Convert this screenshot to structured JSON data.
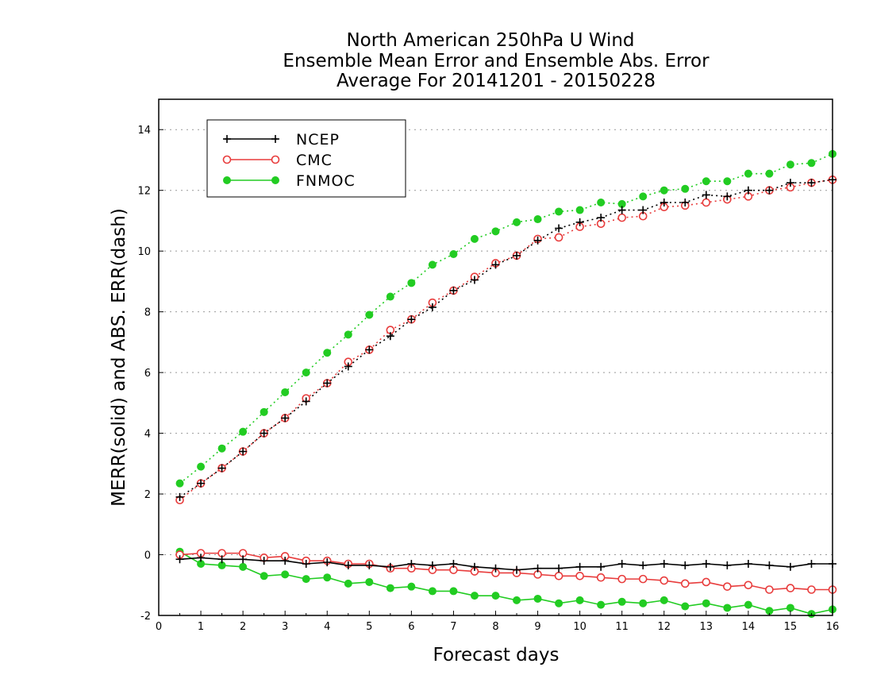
{
  "chart_data": {
    "type": "line",
    "title_lines": [
      "North American 250hPa U Wind",
      "Ensemble Mean Error and Ensemble Abs. Error",
      "Average For 20141201 - 20150228"
    ],
    "xlabel": "Forecast days",
    "ylabel": "MERR(solid) and ABS. ERR(dash)",
    "xlim": [
      0,
      16
    ],
    "ylim": [
      -2,
      15
    ],
    "x_ticks": [
      "0",
      "1",
      "2",
      "3",
      "4",
      "5",
      "6",
      "7",
      "8",
      "9",
      "10",
      "11",
      "12",
      "13",
      "14",
      "15",
      "16"
    ],
    "y_ticks": [
      "-2",
      "0",
      "2",
      "4",
      "6",
      "8",
      "10",
      "12",
      "14"
    ],
    "grid": "horizontal dotted",
    "legend_position": "top-left",
    "x": [
      0.5,
      1,
      1.5,
      2,
      2.5,
      3,
      3.5,
      4,
      4.5,
      5,
      5.5,
      6,
      6.5,
      7,
      7.5,
      8,
      8.5,
      9,
      9.5,
      10,
      10.5,
      11,
      11.5,
      12,
      12.5,
      13,
      13.5,
      14,
      14.5,
      15,
      15.5,
      16
    ],
    "series": [
      {
        "name": "NCEP",
        "color": "#000000",
        "marker": "plus",
        "merr": [
          -0.15,
          -0.1,
          -0.15,
          -0.15,
          -0.2,
          -0.2,
          -0.3,
          -0.25,
          -0.35,
          -0.35,
          -0.4,
          -0.3,
          -0.35,
          -0.3,
          -0.4,
          -0.45,
          -0.5,
          -0.45,
          -0.45,
          -0.4,
          -0.4,
          -0.3,
          -0.35,
          -0.3,
          -0.35,
          -0.3,
          -0.35,
          -0.3,
          -0.35,
          -0.4,
          -0.3,
          -0.3
        ],
        "abs_err": [
          1.9,
          2.35,
          2.85,
          3.4,
          4.0,
          4.5,
          5.05,
          5.65,
          6.2,
          6.75,
          7.2,
          7.75,
          8.15,
          8.7,
          9.05,
          9.55,
          9.85,
          10.35,
          10.75,
          10.95,
          11.1,
          11.35,
          11.35,
          11.6,
          11.6,
          11.85,
          11.8,
          12.0,
          12.0,
          12.25,
          12.25,
          12.35
        ]
      },
      {
        "name": "CMC",
        "color": "#e83c3c",
        "marker": "open-circle",
        "merr": [
          0.0,
          0.05,
          0.05,
          0.05,
          -0.1,
          -0.05,
          -0.2,
          -0.2,
          -0.3,
          -0.3,
          -0.45,
          -0.45,
          -0.5,
          -0.5,
          -0.55,
          -0.6,
          -0.6,
          -0.65,
          -0.7,
          -0.7,
          -0.75,
          -0.8,
          -0.8,
          -0.85,
          -0.95,
          -0.9,
          -1.05,
          -1.0,
          -1.15,
          -1.1,
          -1.15,
          -1.15
        ],
        "abs_err": [
          1.8,
          2.35,
          2.85,
          3.4,
          4.0,
          4.5,
          5.15,
          5.65,
          6.35,
          6.75,
          7.4,
          7.75,
          8.3,
          8.7,
          9.15,
          9.6,
          9.85,
          10.4,
          10.45,
          10.8,
          10.9,
          11.1,
          11.15,
          11.45,
          11.5,
          11.6,
          11.7,
          11.8,
          12.0,
          12.1,
          12.25,
          12.35
        ]
      },
      {
        "name": "FNMOC",
        "color": "#22cc22",
        "marker": "filled-circle",
        "merr": [
          0.1,
          -0.3,
          -0.35,
          -0.4,
          -0.7,
          -0.65,
          -0.8,
          -0.75,
          -0.95,
          -0.9,
          -1.1,
          -1.05,
          -1.2,
          -1.2,
          -1.35,
          -1.35,
          -1.5,
          -1.45,
          -1.6,
          -1.5,
          -1.65,
          -1.55,
          -1.6,
          -1.5,
          -1.7,
          -1.6,
          -1.75,
          -1.65,
          -1.85,
          -1.75,
          -1.95,
          -1.8
        ],
        "abs_err": [
          2.35,
          2.9,
          3.5,
          4.05,
          4.7,
          5.35,
          6.0,
          6.65,
          7.25,
          7.9,
          8.5,
          8.95,
          9.55,
          9.9,
          10.4,
          10.65,
          10.95,
          11.05,
          11.3,
          11.35,
          11.6,
          11.55,
          11.8,
          12.0,
          12.05,
          12.3,
          12.3,
          12.55,
          12.55,
          12.85,
          12.9,
          13.2
        ]
      }
    ]
  }
}
